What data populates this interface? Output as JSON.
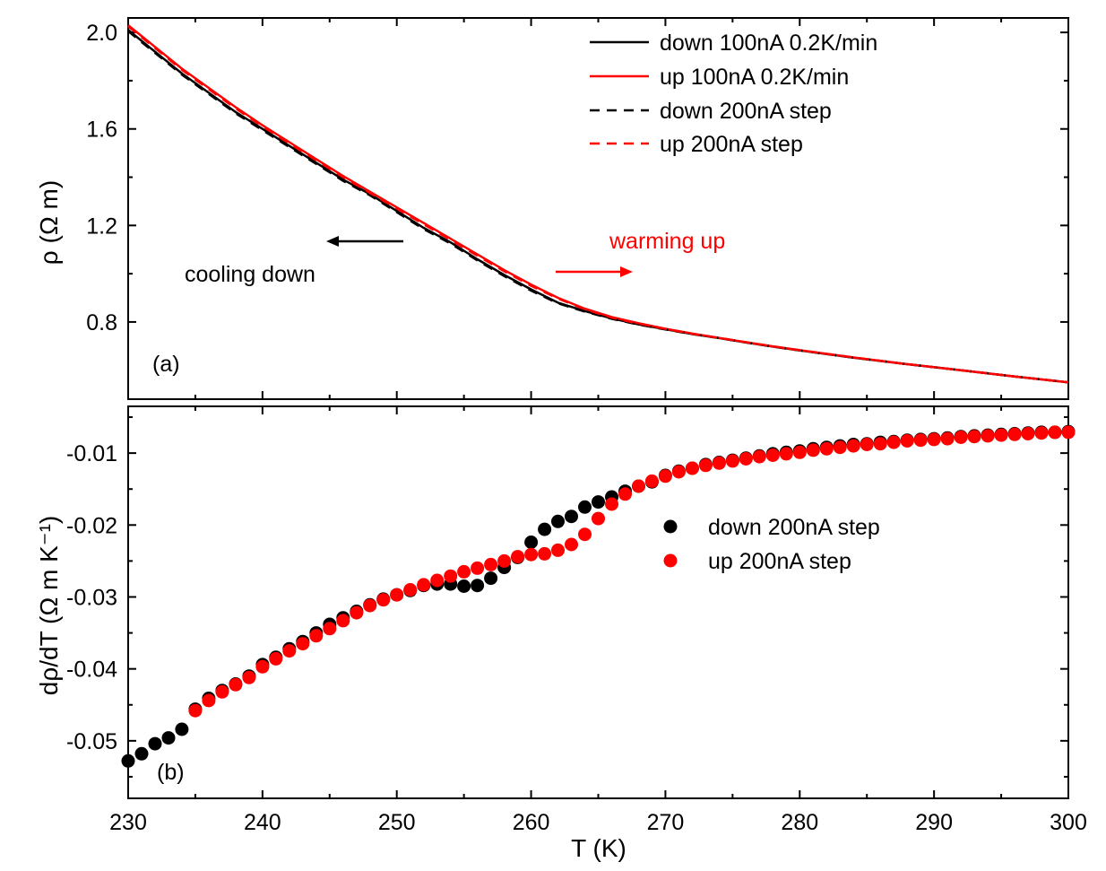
{
  "chart_data": [
    {
      "panel": "(a)",
      "type": "line",
      "ylabel": "ρ (Ω m)",
      "xlim": [
        230,
        300
      ],
      "ylim": [
        0.48,
        2.06
      ],
      "yticks": [
        "0.8",
        "1.2",
        "1.6",
        "2.0"
      ],
      "ytick_values": [
        0.8,
        1.2,
        1.6,
        2.0
      ],
      "legend_position": "top-right",
      "annotations": {
        "cooling": "cooling down",
        "warming": "warming up"
      },
      "series": [
        {
          "name": "down 100nA 0.2K/min",
          "color": "#000000",
          "style": "solid",
          "x": [
            230,
            232,
            234,
            236,
            238,
            240,
            242,
            244,
            246,
            248,
            250,
            252,
            254,
            256,
            258,
            260,
            262,
            264,
            266,
            268,
            270,
            272,
            274,
            276,
            278,
            280,
            284,
            288,
            292,
            296,
            300
          ],
          "y": [
            2.01,
            1.92,
            1.83,
            1.75,
            1.67,
            1.6,
            1.53,
            1.46,
            1.39,
            1.33,
            1.26,
            1.19,
            1.13,
            1.06,
            0.995,
            0.935,
            0.88,
            0.845,
            0.815,
            0.79,
            0.77,
            0.75,
            0.733,
            0.715,
            0.698,
            0.682,
            0.652,
            0.625,
            0.6,
            0.574,
            0.55
          ]
        },
        {
          "name": "up 100nA 0.2K/min",
          "color": "#ff0000",
          "style": "solid",
          "x": [
            230,
            232,
            234,
            236,
            238,
            240,
            242,
            244,
            246,
            248,
            250,
            252,
            254,
            256,
            258,
            260,
            262,
            264,
            266,
            268,
            270,
            272,
            274,
            276,
            278,
            280,
            284,
            288,
            292,
            296,
            300
          ],
          "y": [
            2.03,
            1.94,
            1.85,
            1.77,
            1.69,
            1.615,
            1.545,
            1.475,
            1.405,
            1.34,
            1.275,
            1.21,
            1.145,
            1.08,
            1.015,
            0.955,
            0.9,
            0.855,
            0.82,
            0.795,
            0.772,
            0.752,
            0.734,
            0.716,
            0.699,
            0.683,
            0.653,
            0.625,
            0.6,
            0.574,
            0.55
          ]
        },
        {
          "name": "down 200nA step",
          "color": "#000000",
          "style": "dashed",
          "x": [
            230,
            232,
            234,
            236,
            238,
            240,
            242,
            244,
            246,
            248,
            250,
            252,
            254,
            256,
            258,
            260,
            262,
            264,
            266,
            268,
            270,
            272,
            274,
            276,
            278,
            280,
            284,
            288,
            292,
            296,
            300
          ],
          "y": [
            2.005,
            1.915,
            1.825,
            1.745,
            1.665,
            1.595,
            1.525,
            1.455,
            1.385,
            1.325,
            1.255,
            1.185,
            1.125,
            1.055,
            0.99,
            0.93,
            0.877,
            0.843,
            0.813,
            0.789,
            0.769,
            0.75,
            0.733,
            0.715,
            0.698,
            0.682,
            0.652,
            0.625,
            0.6,
            0.574,
            0.55
          ]
        },
        {
          "name": "up 200nA step",
          "color": "#ff0000",
          "style": "dashed",
          "x": [
            230,
            232,
            234,
            236,
            238,
            240,
            242,
            244,
            246,
            248,
            250,
            252,
            254,
            256,
            258,
            260,
            262,
            264,
            266,
            268,
            270,
            272,
            274,
            276,
            278,
            280,
            284,
            288,
            292,
            296,
            300
          ],
          "y": [
            2.025,
            1.935,
            1.845,
            1.765,
            1.685,
            1.61,
            1.54,
            1.47,
            1.4,
            1.335,
            1.27,
            1.205,
            1.14,
            1.075,
            1.01,
            0.95,
            0.897,
            0.853,
            0.818,
            0.793,
            0.771,
            0.751,
            0.734,
            0.716,
            0.699,
            0.683,
            0.653,
            0.625,
            0.6,
            0.574,
            0.55
          ]
        }
      ]
    },
    {
      "panel": "(b)",
      "type": "scatter",
      "xlabel": "T (K)",
      "ylabel": "dρ/dT (Ω m K⁻¹)",
      "xlim": [
        230,
        300
      ],
      "ylim": [
        -0.058,
        -0.0035
      ],
      "xticks": [
        "230",
        "240",
        "250",
        "260",
        "270",
        "280",
        "290",
        "300"
      ],
      "xtick_values": [
        230,
        240,
        250,
        260,
        270,
        280,
        290,
        300
      ],
      "yticks": [
        "-0.05",
        "-0.04",
        "-0.03",
        "-0.02",
        "-0.01"
      ],
      "ytick_values": [
        -0.05,
        -0.04,
        -0.03,
        -0.02,
        -0.01
      ],
      "legend_position": "right",
      "series": [
        {
          "name": "down 200nA step",
          "color": "#000000",
          "x": [
            230,
            231,
            232,
            233,
            234,
            235,
            236,
            237,
            238,
            239,
            240,
            241,
            242,
            243,
            244,
            245,
            246,
            247,
            248,
            249,
            250,
            251,
            252,
            253,
            254,
            255,
            256,
            257,
            258,
            259,
            260,
            261,
            262,
            263,
            264,
            265,
            266,
            267,
            268,
            269,
            270,
            271,
            272,
            273,
            274,
            275,
            276,
            277,
            278,
            279,
            280,
            281,
            282,
            283,
            284,
            285,
            286,
            287,
            288,
            289,
            290,
            291,
            292,
            293,
            294,
            295,
            296,
            297,
            298,
            299,
            300
          ],
          "y": [
            -0.0528,
            -0.0518,
            -0.0504,
            -0.0496,
            -0.0484,
            -0.0456,
            -0.0441,
            -0.043,
            -0.0421,
            -0.041,
            -0.0394,
            -0.0384,
            -0.0372,
            -0.0362,
            -0.035,
            -0.0338,
            -0.0329,
            -0.032,
            -0.0311,
            -0.0303,
            -0.0297,
            -0.0291,
            -0.0284,
            -0.0282,
            -0.0282,
            -0.0285,
            -0.0284,
            -0.0274,
            -0.0259,
            -0.0245,
            -0.0224,
            -0.0206,
            -0.0195,
            -0.0188,
            -0.0175,
            -0.0168,
            -0.0161,
            -0.0153,
            -0.0146,
            -0.014,
            -0.0131,
            -0.0125,
            -0.0121,
            -0.0116,
            -0.0113,
            -0.011,
            -0.0107,
            -0.0104,
            -0.0101,
            -0.0099,
            -0.0097,
            -0.0094,
            -0.0092,
            -0.009,
            -0.0088,
            -0.0087,
            -0.0085,
            -0.0084,
            -0.0082,
            -0.0081,
            -0.008,
            -0.0079,
            -0.0077,
            -0.0076,
            -0.0075,
            -0.0074,
            -0.0073,
            -0.0072,
            -0.0071,
            -0.0071,
            -0.007
          ]
        },
        {
          "name": "up 200nA step",
          "color": "#ff0000",
          "x": [
            235,
            236,
            237,
            238,
            239,
            240,
            241,
            242,
            243,
            244,
            245,
            246,
            247,
            248,
            249,
            250,
            251,
            252,
            253,
            254,
            255,
            256,
            257,
            258,
            259,
            260,
            261,
            262,
            263,
            264,
            265,
            266,
            267,
            268,
            269,
            270,
            271,
            272,
            273,
            274,
            275,
            276,
            277,
            278,
            279,
            280,
            281,
            282,
            283,
            284,
            285,
            286,
            287,
            288,
            289,
            290,
            291,
            292,
            293,
            294,
            295,
            296,
            297,
            298,
            299,
            300
          ],
          "y": [
            -0.0458,
            -0.0444,
            -0.0432,
            -0.0422,
            -0.0412,
            -0.0397,
            -0.0386,
            -0.0375,
            -0.0365,
            -0.0354,
            -0.0344,
            -0.0333,
            -0.0322,
            -0.0312,
            -0.0304,
            -0.0297,
            -0.029,
            -0.0283,
            -0.0277,
            -0.0271,
            -0.0265,
            -0.026,
            -0.0255,
            -0.025,
            -0.0244,
            -0.0241,
            -0.024,
            -0.0235,
            -0.0227,
            -0.0213,
            -0.0191,
            -0.0171,
            -0.0157,
            -0.0146,
            -0.0139,
            -0.0132,
            -0.0126,
            -0.0121,
            -0.0117,
            -0.0114,
            -0.0111,
            -0.0108,
            -0.0105,
            -0.0103,
            -0.0101,
            -0.0099,
            -0.0096,
            -0.0094,
            -0.0092,
            -0.009,
            -0.0088,
            -0.0087,
            -0.0085,
            -0.0083,
            -0.0082,
            -0.0081,
            -0.008,
            -0.0078,
            -0.0077,
            -0.0076,
            -0.0075,
            -0.0074,
            -0.0073,
            -0.0072,
            -0.0071,
            -0.0071
          ]
        }
      ]
    }
  ]
}
